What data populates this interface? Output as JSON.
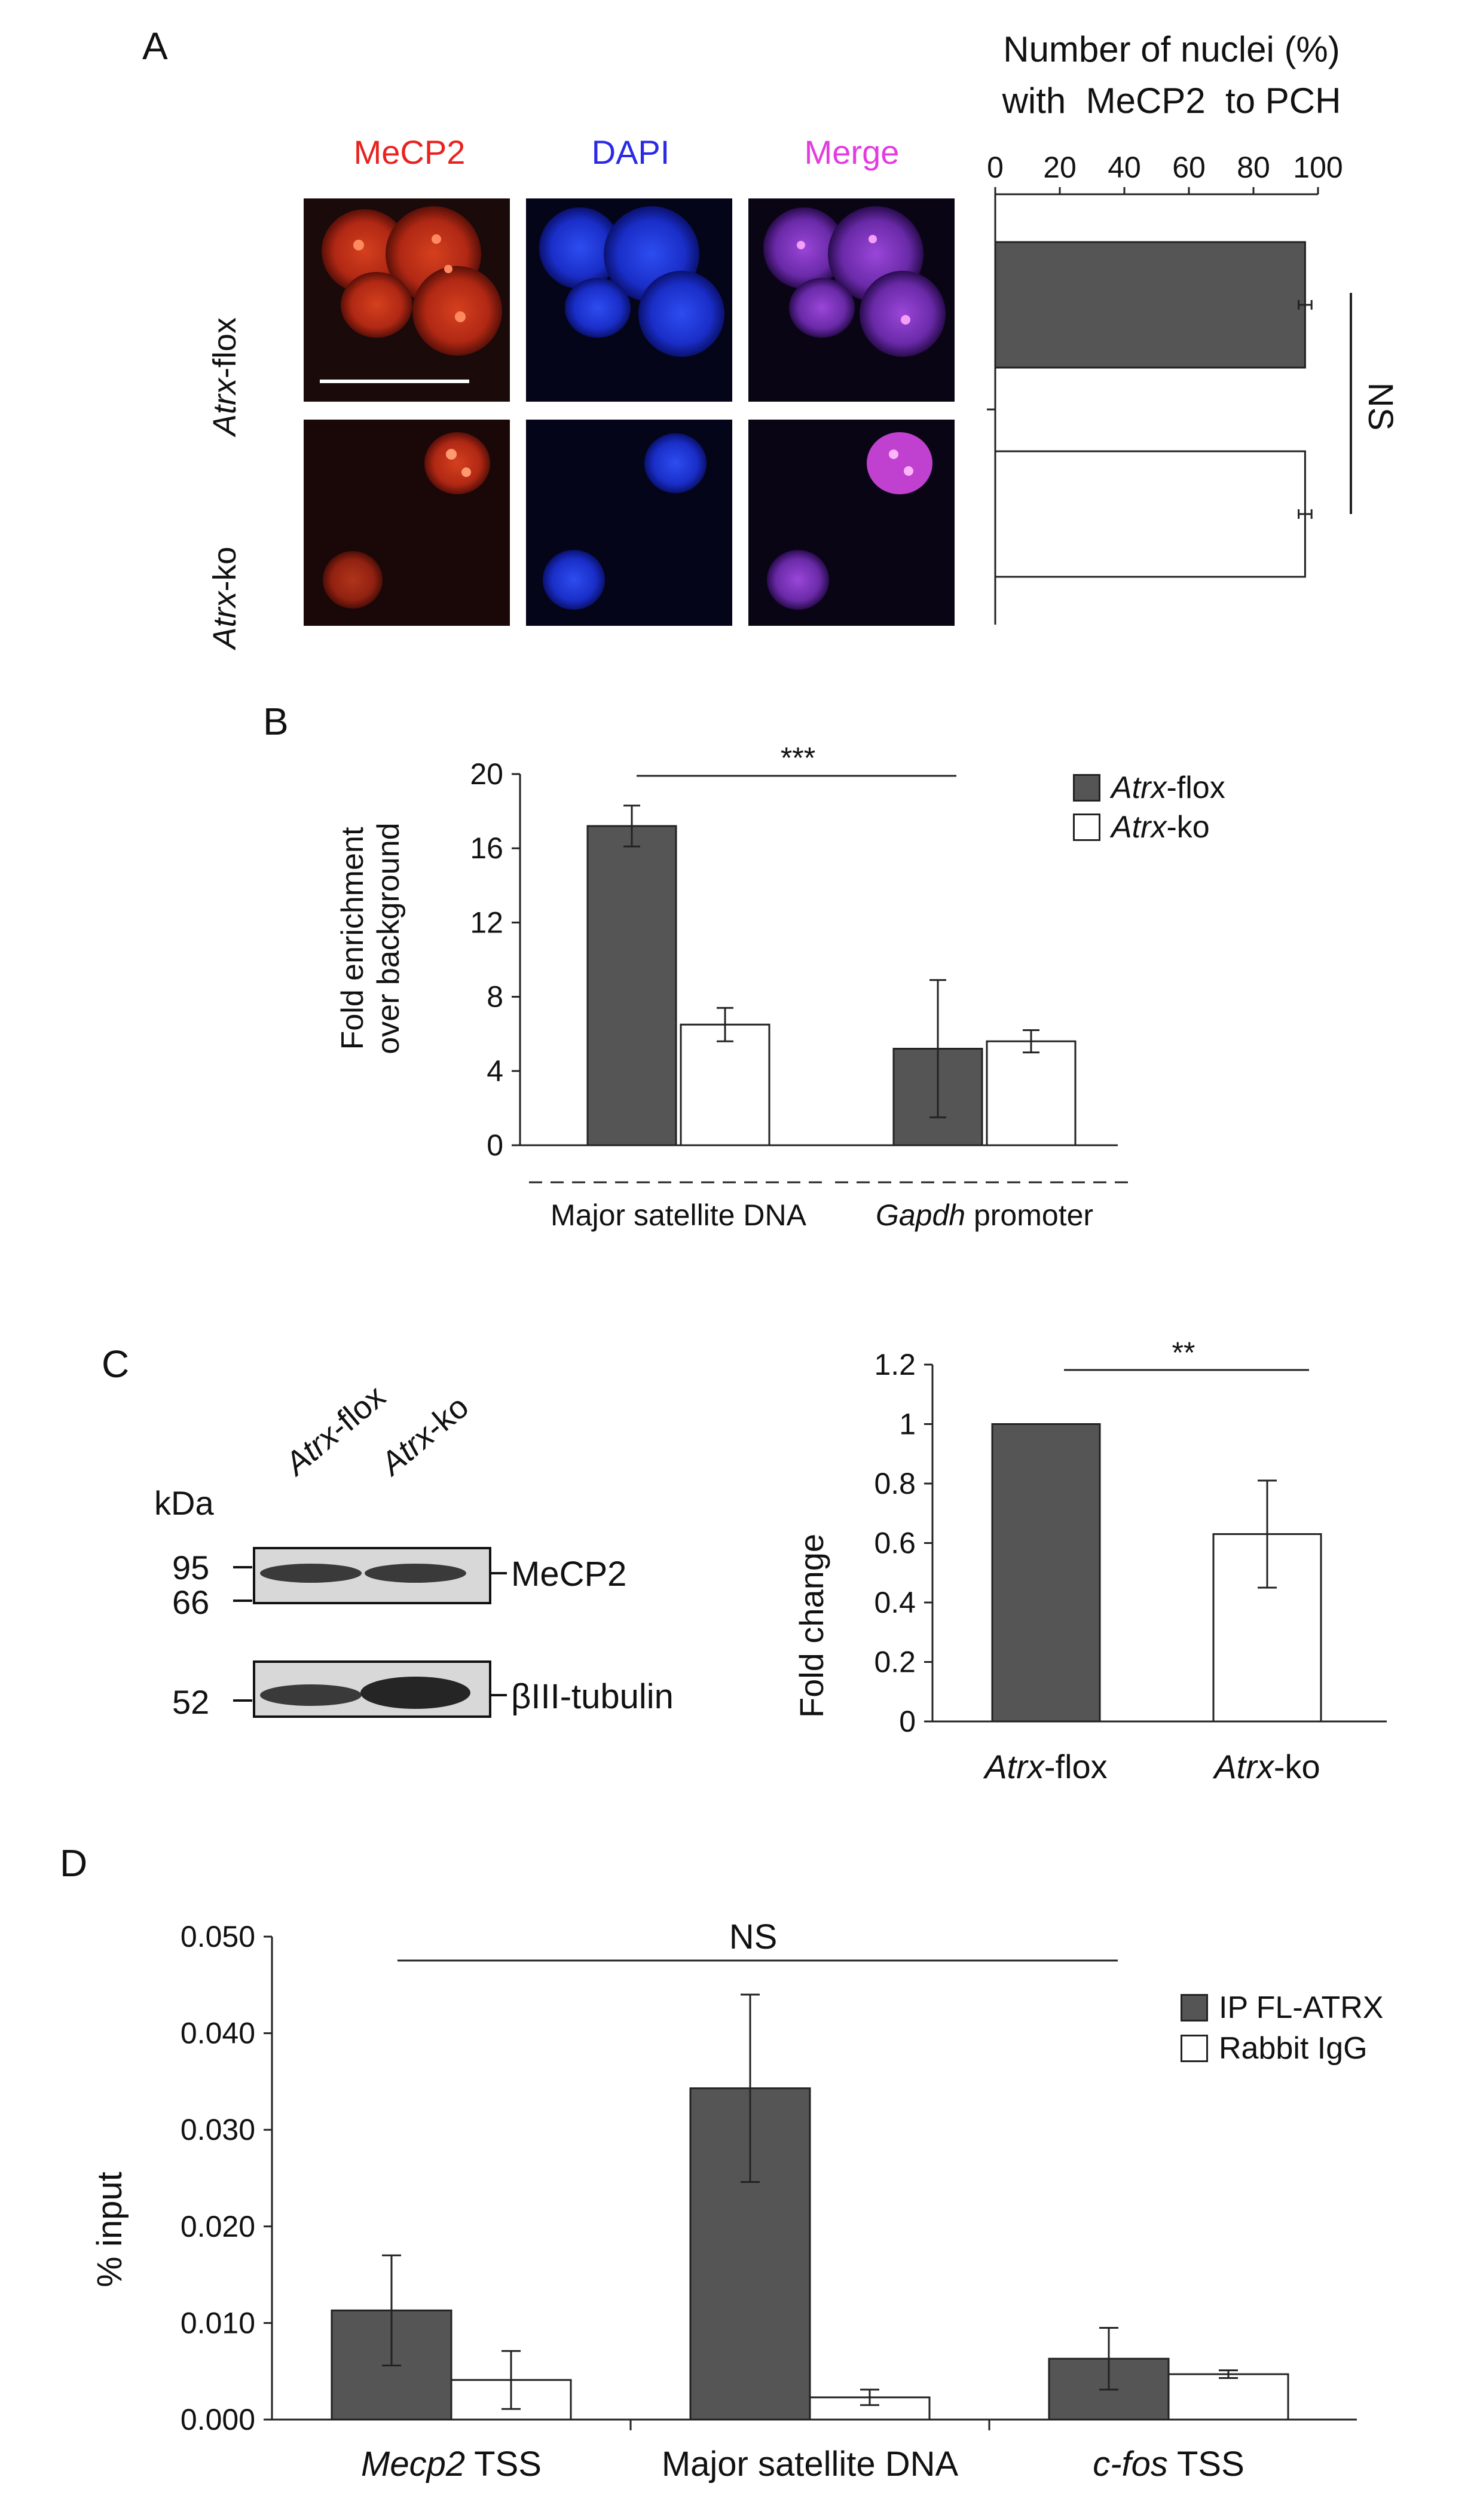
{
  "panels": {
    "A": {
      "label": "A",
      "micro": {
        "channels": [
          {
            "name": "MeCP2",
            "color": "#e8231f"
          },
          {
            "name": "DAPI",
            "color": "#2a2ae8"
          },
          {
            "name": "Merge",
            "color": "#e23ce0"
          }
        ],
        "row_labels": [
          {
            "italic": "Atrx",
            "rest": "-flox"
          },
          {
            "italic": "Atrx",
            "rest": "-ko"
          }
        ]
      },
      "chart_data": {
        "type": "bar",
        "orientation": "horizontal",
        "title_line1": "Number of nuclei (%)",
        "title_line2": "with  MeCP2  to PCH",
        "xlim": [
          0,
          100
        ],
        "ticks": [
          0,
          20,
          40,
          60,
          80,
          100
        ],
        "categories": [
          "Atrx-flox",
          "Atrx-ko"
        ],
        "values": [
          96,
          96
        ],
        "errors": [
          2,
          2
        ],
        "colors": [
          "#555555",
          "#ffffff"
        ],
        "significance": "NS"
      }
    },
    "B": {
      "label": "B",
      "chart_data": {
        "type": "bar",
        "ylabel_line1": "Fold enrichment",
        "ylabel_line2": "over background",
        "ylim": [
          0,
          20
        ],
        "ticks": [
          0,
          4,
          8,
          12,
          16,
          20
        ],
        "categories": [
          {
            "italic": "",
            "rest": "Major satellite DNA"
          },
          {
            "italic": "Gapdh",
            "rest": " promoter"
          }
        ],
        "series": [
          {
            "name_italic": "Atrx",
            "name_rest": "-flox",
            "color": "#555555",
            "values": [
              17.2,
              5.2
            ],
            "errors": [
              1.1,
              3.7
            ]
          },
          {
            "name_italic": "Atrx",
            "name_rest": "-ko",
            "color": "#ffffff",
            "values": [
              6.5,
              5.6
            ],
            "errors": [
              0.9,
              0.6
            ]
          }
        ],
        "significance": "***"
      }
    },
    "C": {
      "label": "C",
      "blot": {
        "kda_label": "kDa",
        "lanes": [
          {
            "italic": "Atrx",
            "rest": "-flox"
          },
          {
            "italic": "Atrx",
            "rest": "-ko"
          }
        ],
        "markers": [
          "95",
          "66",
          "52"
        ],
        "bands": [
          "MeCP2",
          "βIII-tubulin"
        ]
      },
      "chart_data": {
        "type": "bar",
        "ylabel": "Fold change",
        "ylim": [
          0,
          1.2
        ],
        "ticks": [
          "0",
          "0.2",
          "0.4",
          "0.6",
          "0.8",
          "1",
          "1.2"
        ],
        "categories": [
          {
            "italic": "Atrx",
            "rest": "-flox"
          },
          {
            "italic": "Atrx",
            "rest": "-ko"
          }
        ],
        "values": [
          1.0,
          0.63
        ],
        "errors": [
          0,
          0.18
        ],
        "colors": [
          "#555555",
          "#ffffff"
        ],
        "significance": "**"
      }
    },
    "D": {
      "label": "D",
      "chart_data": {
        "type": "bar",
        "ylabel": "% input",
        "ylim": [
          0,
          0.05
        ],
        "ticks": [
          "0.000",
          "0.010",
          "0.020",
          "0.030",
          "0.040",
          "0.050"
        ],
        "categories": [
          {
            "italic": "Mecp2",
            "rest": " TSS"
          },
          {
            "italic": "",
            "rest": "Major satellite DNA"
          },
          {
            "italic": "c-fos",
            "rest": " TSS"
          }
        ],
        "series": [
          {
            "name": "IP FL-ATRX",
            "color": "#555555",
            "values": [
              0.0113,
              0.0343,
              0.0063
            ],
            "errors": [
              0.0057,
              0.0097,
              0.0032
            ]
          },
          {
            "name": "Rabbit IgG",
            "color": "#ffffff",
            "values": [
              0.0041,
              0.0023,
              0.0047
            ],
            "errors": [
              0.003,
              0.0008,
              0.0004
            ]
          }
        ],
        "significance": "NS"
      }
    }
  }
}
